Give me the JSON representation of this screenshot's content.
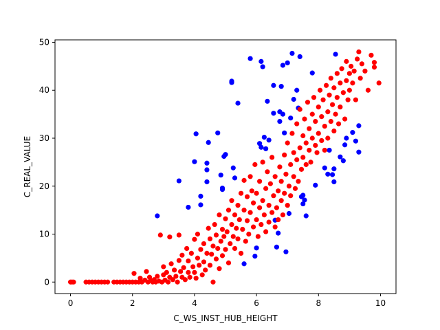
{
  "chart_data": {
    "type": "scatter",
    "title": "",
    "xlabel": "C_WS_INST_HUB_HEIGHT",
    "ylabel": "C_REAL_VALUE",
    "xlim": [
      -0.5,
      10.5
    ],
    "ylim": [
      -2.4,
      50.5
    ],
    "xticks": [
      0,
      2,
      4,
      6,
      8,
      10
    ],
    "yticks": [
      0,
      10,
      20,
      30,
      40,
      50
    ],
    "grid": false,
    "legend": "none",
    "series": [
      {
        "color": "#0000ff",
        "points": [
          [
            2.8,
            13.8
          ],
          [
            3.5,
            21.1
          ],
          [
            3.8,
            15.6
          ],
          [
            4.0,
            25.1
          ],
          [
            4.05,
            30.9
          ],
          [
            4.2,
            17.9
          ],
          [
            4.2,
            16.1
          ],
          [
            4.4,
            24.8
          ],
          [
            4.4,
            23.4
          ],
          [
            4.4,
            20.9
          ],
          [
            4.45,
            29.1
          ],
          [
            4.75,
            31.1
          ],
          [
            4.85,
            22.3
          ],
          [
            4.9,
            19.6
          ],
          [
            4.9,
            19.3
          ],
          [
            4.95,
            26.2
          ],
          [
            5.0,
            26.6
          ],
          [
            5.2,
            41.9
          ],
          [
            5.2,
            41.6
          ],
          [
            5.25,
            23.8
          ],
          [
            5.3,
            21.7
          ],
          [
            5.4,
            37.3
          ],
          [
            5.6,
            3.8
          ],
          [
            5.8,
            46.6
          ],
          [
            5.95,
            5.4
          ],
          [
            6.0,
            7.1
          ],
          [
            6.1,
            28.9
          ],
          [
            6.15,
            28.1
          ],
          [
            6.15,
            46.0
          ],
          [
            6.2,
            44.9
          ],
          [
            6.25,
            30.2
          ],
          [
            6.3,
            27.8
          ],
          [
            6.35,
            37.7
          ],
          [
            6.4,
            29.6
          ],
          [
            6.55,
            41.0
          ],
          [
            6.55,
            35.2
          ],
          [
            6.6,
            12.9
          ],
          [
            6.65,
            7.3
          ],
          [
            6.7,
            10.2
          ],
          [
            6.75,
            35.5
          ],
          [
            6.75,
            33.5
          ],
          [
            6.8,
            40.8
          ],
          [
            6.85,
            35.0
          ],
          [
            6.85,
            45.2
          ],
          [
            6.9,
            31.1
          ],
          [
            6.95,
            6.3
          ],
          [
            7.0,
            45.7
          ],
          [
            7.05,
            14.3
          ],
          [
            7.1,
            34.2
          ],
          [
            7.15,
            47.7
          ],
          [
            7.2,
            38.1
          ],
          [
            7.3,
            40.0
          ],
          [
            7.35,
            36.3
          ],
          [
            7.4,
            47.0
          ],
          [
            7.45,
            17.8
          ],
          [
            7.5,
            18.1
          ],
          [
            7.5,
            16.3
          ],
          [
            7.55,
            17.1
          ],
          [
            7.6,
            13.8
          ],
          [
            7.8,
            43.6
          ],
          [
            7.9,
            20.2
          ],
          [
            8.2,
            23.8
          ],
          [
            8.3,
            22.5
          ],
          [
            8.35,
            27.5
          ],
          [
            8.45,
            22.4
          ],
          [
            8.5,
            20.9
          ],
          [
            8.5,
            23.6
          ],
          [
            8.55,
            47.5
          ],
          [
            8.7,
            26.1
          ],
          [
            8.8,
            25.3
          ],
          [
            8.85,
            28.6
          ],
          [
            8.9,
            30.0
          ],
          [
            9.1,
            31.2
          ],
          [
            9.2,
            29.4
          ],
          [
            9.3,
            32.6
          ],
          [
            9.3,
            27.1
          ]
        ]
      },
      {
        "color": "#ff0000",
        "points": [
          [
            0.0,
            0.0
          ],
          [
            0.05,
            0.0
          ],
          [
            0.1,
            0.0
          ],
          [
            0.5,
            0.0
          ],
          [
            0.6,
            0.0
          ],
          [
            0.7,
            0.0
          ],
          [
            0.8,
            0.0
          ],
          [
            0.9,
            0.0
          ],
          [
            1.0,
            0.0
          ],
          [
            1.1,
            0.0
          ],
          [
            1.2,
            0.0
          ],
          [
            1.4,
            0.0
          ],
          [
            1.5,
            0.0
          ],
          [
            1.6,
            0.0
          ],
          [
            1.7,
            0.0
          ],
          [
            1.8,
            0.0
          ],
          [
            1.9,
            0.0
          ],
          [
            2.0,
            0.0
          ],
          [
            2.05,
            1.8
          ],
          [
            2.1,
            0.0
          ],
          [
            2.2,
            0.0
          ],
          [
            2.25,
            0.8
          ],
          [
            2.3,
            0.0
          ],
          [
            2.4,
            0.4
          ],
          [
            2.45,
            2.2
          ],
          [
            2.5,
            0.0
          ],
          [
            2.55,
            1.0
          ],
          [
            2.6,
            0.3
          ],
          [
            2.65,
            0.0
          ],
          [
            2.7,
            0.5
          ],
          [
            2.75,
            0.0
          ],
          [
            2.8,
            1.2
          ],
          [
            2.85,
            0.2
          ],
          [
            2.9,
            9.8
          ],
          [
            2.95,
            0.0
          ],
          [
            3.0,
            1.5
          ],
          [
            3.0,
            3.2
          ],
          [
            3.05,
            0.4
          ],
          [
            3.1,
            2.0
          ],
          [
            3.15,
            0.0
          ],
          [
            3.2,
            1.0
          ],
          [
            3.2,
            9.4
          ],
          [
            3.25,
            3.8
          ],
          [
            3.3,
            0.5
          ],
          [
            3.35,
            2.5
          ],
          [
            3.4,
            1.2
          ],
          [
            3.45,
            0.0
          ],
          [
            3.5,
            4.5
          ],
          [
            3.5,
            9.8
          ],
          [
            3.55,
            2.2
          ],
          [
            3.6,
            1.0
          ],
          [
            3.6,
            5.6
          ],
          [
            3.65,
            3.0
          ],
          [
            3.7,
            0.5
          ],
          [
            3.75,
            7.0
          ],
          [
            3.8,
            2.0
          ],
          [
            3.8,
            4.4
          ],
          [
            3.85,
            1.0
          ],
          [
            3.9,
            6.0
          ],
          [
            3.95,
            3.2
          ],
          [
            4.0,
            8.9
          ],
          [
            4.0,
            2.0
          ],
          [
            4.05,
            0.8
          ],
          [
            4.1,
            5.0
          ],
          [
            4.1,
            10.0
          ],
          [
            4.15,
            3.5
          ],
          [
            4.2,
            6.8
          ],
          [
            4.25,
            1.5
          ],
          [
            4.3,
            8.0
          ],
          [
            4.3,
            4.2
          ],
          [
            4.35,
            2.5
          ],
          [
            4.4,
            6.0
          ],
          [
            4.45,
            11.2
          ],
          [
            4.5,
            3.5
          ],
          [
            4.5,
            9.0
          ],
          [
            4.55,
            5.8
          ],
          [
            4.6,
            7.5
          ],
          [
            4.6,
            0.0
          ],
          [
            4.65,
            12.0
          ],
          [
            4.7,
            4.8
          ],
          [
            4.7,
            9.8
          ],
          [
            4.75,
            7.0
          ],
          [
            4.8,
            14.0
          ],
          [
            4.8,
            2.8
          ],
          [
            4.85,
            8.5
          ],
          [
            4.9,
            11.0
          ],
          [
            4.9,
            5.5
          ],
          [
            4.95,
            9.5
          ],
          [
            5.0,
            13.2
          ],
          [
            5.0,
            6.8
          ],
          [
            5.05,
            10.5
          ],
          [
            5.1,
            15.0
          ],
          [
            5.1,
            4.0
          ],
          [
            5.15,
            8.0
          ],
          [
            5.2,
            12.0
          ],
          [
            5.2,
            17.0
          ],
          [
            5.25,
            9.5
          ],
          [
            5.3,
            14.0
          ],
          [
            5.3,
            7.0
          ],
          [
            5.35,
            11.2
          ],
          [
            5.4,
            16.0
          ],
          [
            5.4,
            9.0
          ],
          [
            5.45,
            13.0
          ],
          [
            5.5,
            18.5
          ],
          [
            5.5,
            6.0
          ],
          [
            5.55,
            11.0
          ],
          [
            5.6,
            15.0
          ],
          [
            5.6,
            21.2
          ],
          [
            5.65,
            8.5
          ],
          [
            5.7,
            12.8
          ],
          [
            5.7,
            17.8
          ],
          [
            5.75,
            10.0
          ],
          [
            5.8,
            14.5
          ],
          [
            5.8,
            22.0
          ],
          [
            5.85,
            19.0
          ],
          [
            5.9,
            11.5
          ],
          [
            5.9,
            16.5
          ],
          [
            5.95,
            24.5
          ],
          [
            6.0,
            13.0
          ],
          [
            6.0,
            18.5
          ],
          [
            6.05,
            9.5
          ],
          [
            6.1,
            15.5
          ],
          [
            6.1,
            21.0
          ],
          [
            6.15,
            12.0
          ],
          [
            6.2,
            17.0
          ],
          [
            6.2,
            25.0
          ],
          [
            6.25,
            14.0
          ],
          [
            6.3,
            19.5
          ],
          [
            6.3,
            10.5
          ],
          [
            6.35,
            23.0
          ],
          [
            6.4,
            16.0
          ],
          [
            6.4,
            12.5
          ],
          [
            6.45,
            20.5
          ],
          [
            6.5,
            14.5
          ],
          [
            6.5,
            26.0
          ],
          [
            6.55,
            18.0
          ],
          [
            6.6,
            11.5
          ],
          [
            6.6,
            22.0
          ],
          [
            6.65,
            15.5
          ],
          [
            6.7,
            19.0
          ],
          [
            6.7,
            13.0
          ],
          [
            6.75,
            24.0
          ],
          [
            6.8,
            17.0
          ],
          [
            6.8,
            21.0
          ],
          [
            6.85,
            14.0
          ],
          [
            6.9,
            26.5
          ],
          [
            6.9,
            18.5
          ],
          [
            6.95,
            22.5
          ],
          [
            7.0,
            16.0
          ],
          [
            7.0,
            29.0
          ],
          [
            7.05,
            20.0
          ],
          [
            7.1,
            24.5
          ],
          [
            7.1,
            18.0
          ],
          [
            7.15,
            31.0
          ],
          [
            7.2,
            22.0
          ],
          [
            7.2,
            27.0
          ],
          [
            7.25,
            19.5
          ],
          [
            7.3,
            33.0
          ],
          [
            7.3,
            25.5
          ],
          [
            7.35,
            21.0
          ],
          [
            7.4,
            28.0
          ],
          [
            7.4,
            36.0
          ],
          [
            7.45,
            23.5
          ],
          [
            7.5,
            30.5
          ],
          [
            7.5,
            26.0
          ],
          [
            7.55,
            34.0
          ],
          [
            7.6,
            24.5
          ],
          [
            7.6,
            29.0
          ],
          [
            7.65,
            37.5
          ],
          [
            7.7,
            27.5
          ],
          [
            7.7,
            32.0
          ],
          [
            7.75,
            25.0
          ],
          [
            7.8,
            35.0
          ],
          [
            7.8,
            30.0
          ],
          [
            7.85,
            38.5
          ],
          [
            7.9,
            28.5
          ],
          [
            7.9,
            33.5
          ],
          [
            7.95,
            27.0
          ],
          [
            8.0,
            36.5
          ],
          [
            8.0,
            31.0
          ],
          [
            8.05,
            40.0
          ],
          [
            8.1,
            29.5
          ],
          [
            8.1,
            34.5
          ],
          [
            8.15,
            38.0
          ],
          [
            8.2,
            32.5
          ],
          [
            8.2,
            27.5
          ],
          [
            8.25,
            41.0
          ],
          [
            8.3,
            35.5
          ],
          [
            8.3,
            30.0
          ],
          [
            8.35,
            39.0
          ],
          [
            8.4,
            33.5
          ],
          [
            8.4,
            42.5
          ],
          [
            8.45,
            37.0
          ],
          [
            8.5,
            31.5
          ],
          [
            8.5,
            40.5
          ],
          [
            8.55,
            35.0
          ],
          [
            8.6,
            43.5
          ],
          [
            8.6,
            38.5
          ],
          [
            8.65,
            33.0
          ],
          [
            8.7,
            41.5
          ],
          [
            8.7,
            36.5
          ],
          [
            8.75,
            44.5
          ],
          [
            8.8,
            39.5
          ],
          [
            8.85,
            34.0
          ],
          [
            8.9,
            42.0
          ],
          [
            8.9,
            46.0
          ],
          [
            8.95,
            38.0
          ],
          [
            9.0,
            43.5
          ],
          [
            9.0,
            40.0
          ],
          [
            9.05,
            45.0
          ],
          [
            9.1,
            41.5
          ],
          [
            9.15,
            44.0
          ],
          [
            9.2,
            38.0
          ],
          [
            9.25,
            46.5
          ],
          [
            9.3,
            48.0
          ],
          [
            9.35,
            42.5
          ],
          [
            9.4,
            45.5
          ],
          [
            9.5,
            44.0
          ],
          [
            9.6,
            40.0
          ],
          [
            9.7,
            47.3
          ],
          [
            9.8,
            45.8
          ],
          [
            9.8,
            44.8
          ],
          [
            9.95,
            41.5
          ]
        ]
      }
    ]
  }
}
